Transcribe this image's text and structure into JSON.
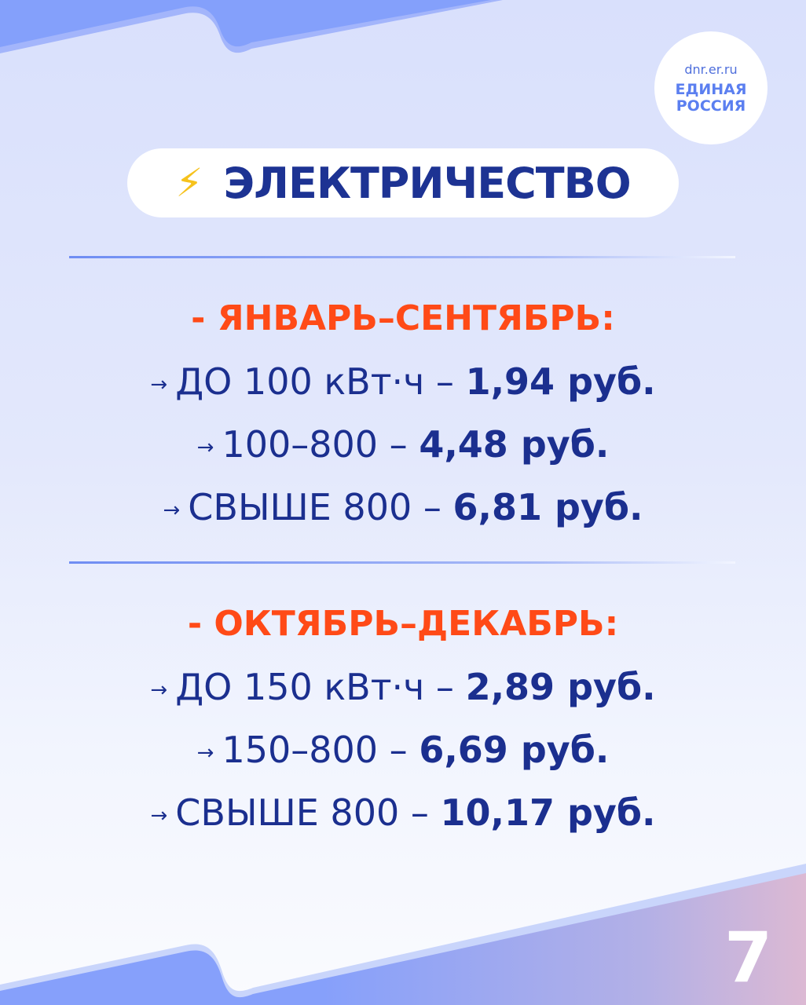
{
  "logo": {
    "url": "dnr.er.ru",
    "name_line1": "ЕДИНАЯ",
    "name_line2": "РОССИЯ"
  },
  "header": {
    "icon": "lightning-bolt-icon",
    "title": "ЭЛЕКТРИЧЕСТВО"
  },
  "sections": [
    {
      "heading": "- ЯНВАРЬ–СЕНТЯБРЬ:",
      "rows": [
        {
          "label": "ДО 100 кВт·ч –",
          "price": "1,94 руб."
        },
        {
          "label": "100–800 –",
          "price": "4,48 руб."
        },
        {
          "label": "СВЫШЕ 800 –",
          "price": "6,81 руб."
        }
      ]
    },
    {
      "heading": "- ОКТЯБРЬ–ДЕКАБРЬ:",
      "rows": [
        {
          "label": "ДО 150 кВт·ч –",
          "price": "2,89 руб."
        },
        {
          "label": "150–800 –",
          "price": "6,69 руб."
        },
        {
          "label": "СВЫШЕ 800 –",
          "price": "10,17 руб."
        }
      ]
    }
  ],
  "arrow": "→",
  "page_number": "7",
  "colors": {
    "heading": "#ff4a17",
    "text": "#1b2f8f",
    "title": "#1d3393",
    "accent": "#84a0fc"
  }
}
